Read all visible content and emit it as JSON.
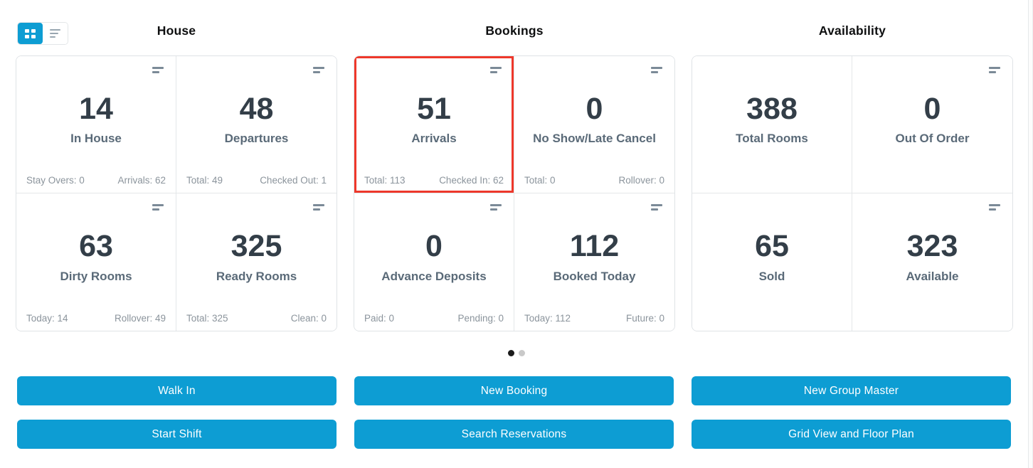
{
  "colors": {
    "accent": "#0d9dd3",
    "highlight_border": "#ee382b",
    "value_text": "#333e48",
    "label_text": "#5a6a78",
    "muted_text": "#8b949c"
  },
  "view_toggle": {
    "active": "grid",
    "options": [
      "grid",
      "list"
    ]
  },
  "pagination": {
    "count": 2,
    "active_index": 0
  },
  "sections": [
    {
      "title": "House",
      "cards": [
        {
          "value": "14",
          "label": "In House",
          "stat_left": "Stay Overs: 0",
          "stat_right": "Arrivals: 62"
        },
        {
          "value": "48",
          "label": "Departures",
          "stat_left": "Total: 49",
          "stat_right": "Checked Out: 1"
        },
        {
          "value": "63",
          "label": "Dirty Rooms",
          "stat_left": "Today: 14",
          "stat_right": "Rollover: 49"
        },
        {
          "value": "325",
          "label": "Ready Rooms",
          "stat_left": "Total: 325",
          "stat_right": "Clean: 0"
        }
      ],
      "buttons": [
        "Walk In",
        "Start Shift"
      ]
    },
    {
      "title": "Bookings",
      "cards": [
        {
          "value": "51",
          "label": "Arrivals",
          "highlighted": true,
          "stat_left": "Total: 113",
          "stat_right": "Checked In: 62"
        },
        {
          "value": "0",
          "label": "No Show/Late Cancel",
          "stat_left": "Total: 0",
          "stat_right": "Rollover: 0"
        },
        {
          "value": "0",
          "label": "Advance Deposits",
          "stat_left": "Paid: 0",
          "stat_right": "Pending: 0"
        },
        {
          "value": "112",
          "label": "Booked Today",
          "stat_left": "Today: 112",
          "stat_right": "Future: 0"
        }
      ],
      "buttons": [
        "New Booking",
        "Search Reservations"
      ]
    },
    {
      "title": "Availability",
      "cards": [
        {
          "value": "388",
          "label": "Total Rooms"
        },
        {
          "value": "0",
          "label": "Out Of Order"
        },
        {
          "value": "65",
          "label": "Sold"
        },
        {
          "value": "323",
          "label": "Available"
        }
      ],
      "buttons": [
        "New Group Master",
        "Grid View and Floor Plan"
      ]
    }
  ]
}
